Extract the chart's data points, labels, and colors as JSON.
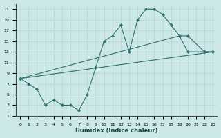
{
  "xlabel": "Humidex (Indice chaleur)",
  "bg_color": "#cce8e8",
  "line_color": "#2d7068",
  "grid_color": "#b8d4d4",
  "xlim": [
    -0.5,
    23.5
  ],
  "ylim": [
    1,
    22
  ],
  "xticks": [
    0,
    1,
    2,
    3,
    4,
    5,
    6,
    7,
    8,
    9,
    10,
    11,
    12,
    13,
    14,
    15,
    16,
    17,
    18,
    19,
    20,
    21,
    22,
    23
  ],
  "yticks": [
    1,
    3,
    5,
    7,
    9,
    11,
    13,
    15,
    17,
    19,
    21
  ],
  "line1_x": [
    0,
    1,
    2,
    3,
    4,
    5,
    6,
    7,
    8,
    9,
    10,
    11,
    12,
    13,
    14,
    15,
    16,
    17,
    18,
    19,
    20,
    22,
    23
  ],
  "line1_y": [
    8,
    7,
    6,
    3,
    4,
    3,
    3,
    2,
    5,
    10,
    15,
    16,
    18,
    13,
    19,
    21,
    21,
    20,
    18,
    16,
    13,
    13,
    13
  ],
  "line2_x": [
    0,
    23
  ],
  "line2_y": [
    8,
    13
  ],
  "line3_x": [
    0,
    19,
    20,
    22,
    23
  ],
  "line3_y": [
    8,
    16,
    16,
    13,
    13
  ]
}
